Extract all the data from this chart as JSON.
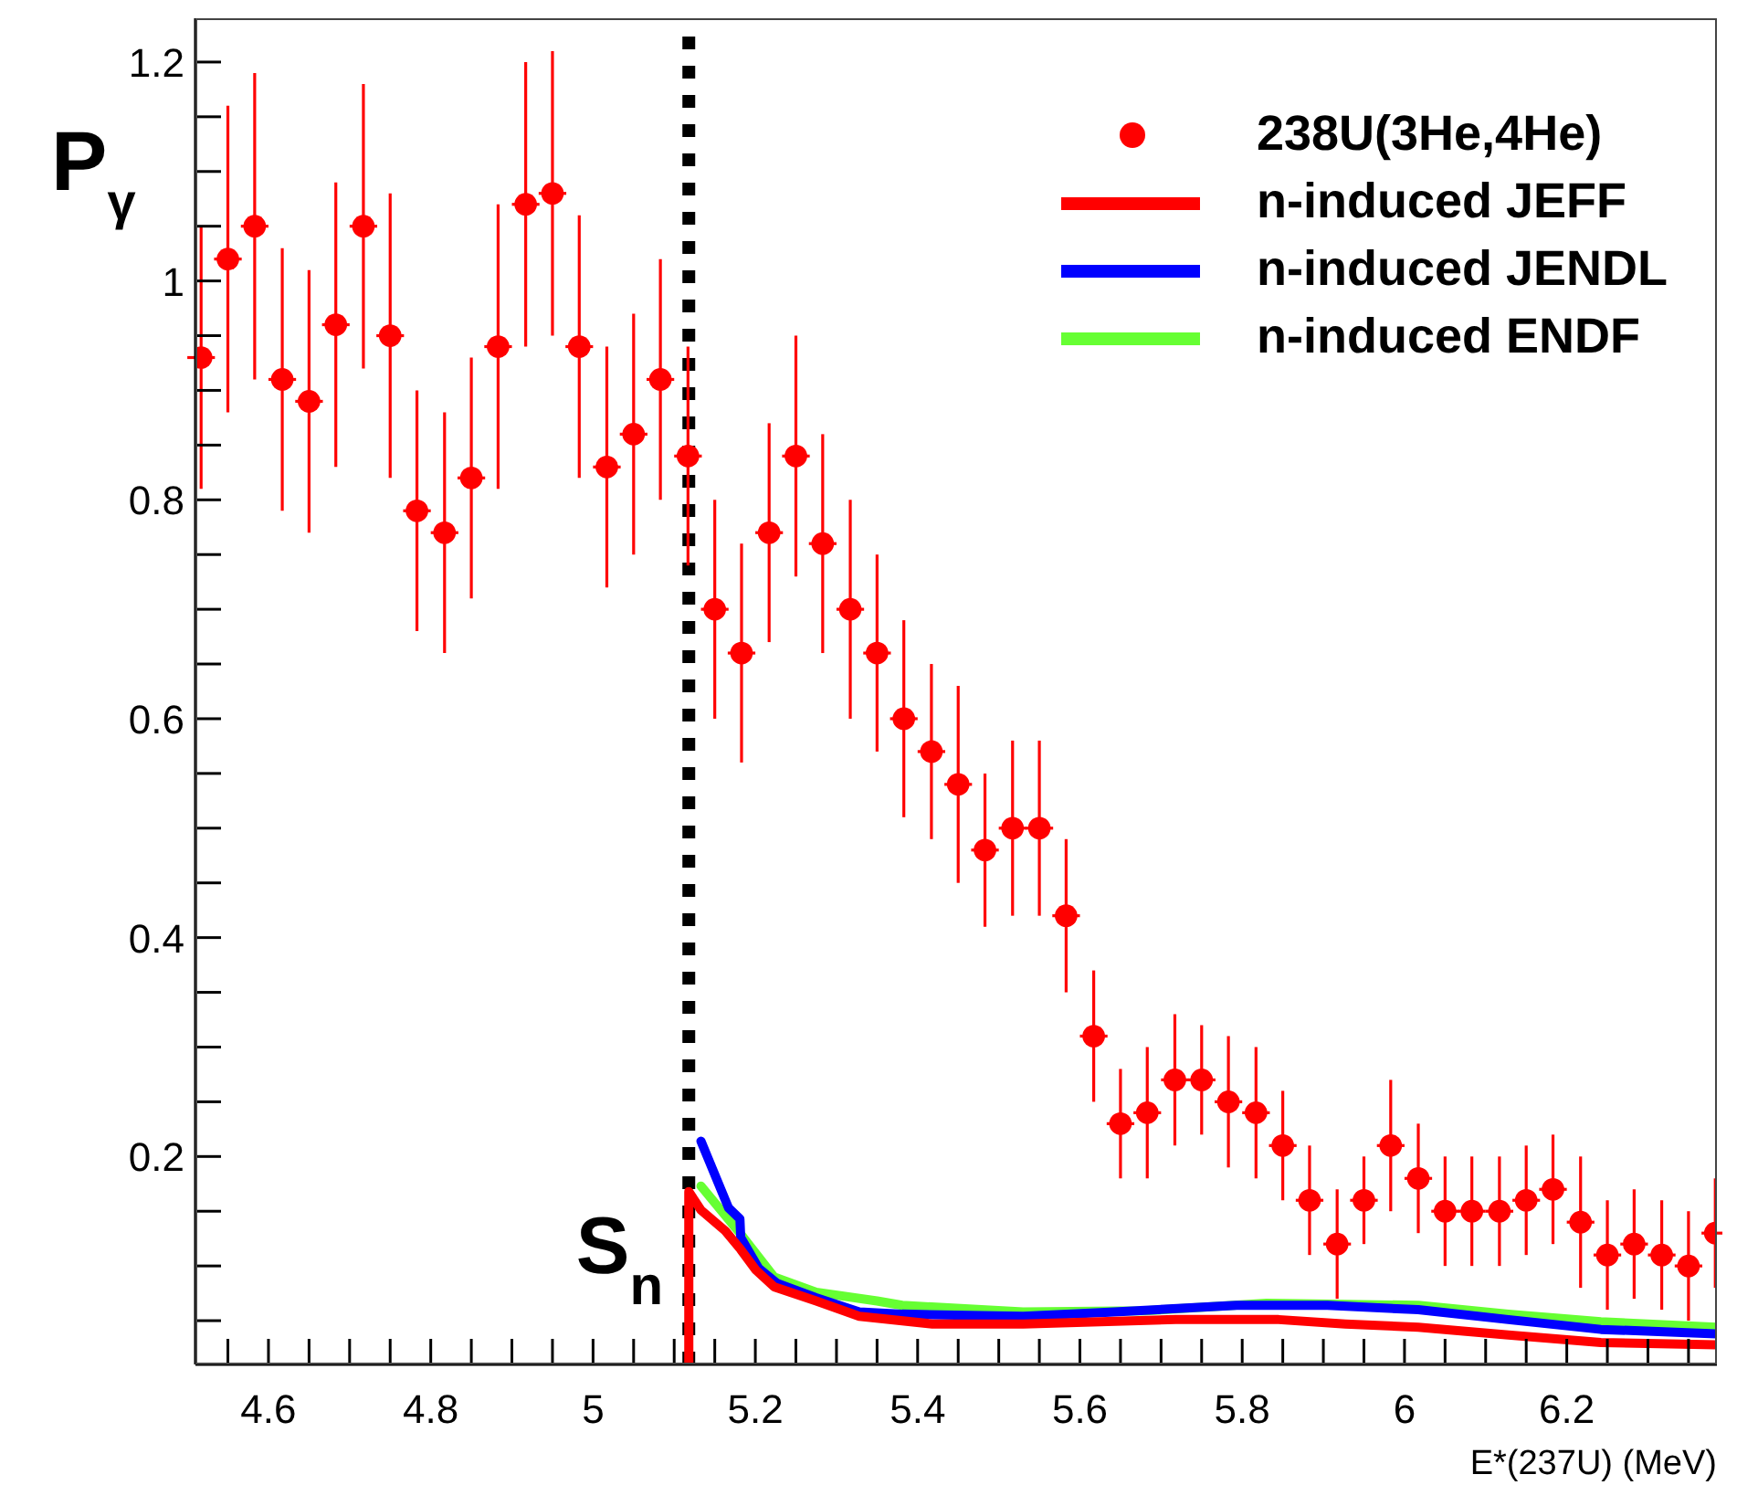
{
  "chart_data": {
    "type": "scatter",
    "xlabel": "E*(237U) (MeV)",
    "ylabel": "P$_{γ}$",
    "xlim": [
      4.51,
      6.385
    ],
    "ylim": [
      0.01,
      1.24
    ],
    "xticks": [
      {
        "value": 4.55,
        "label": null
      },
      4.6,
      {
        "value": 4.65,
        "label": null
      },
      {
        "value": 4.7,
        "label": null
      },
      {
        "value": 4.75,
        "label": null
      },
      4.8,
      {
        "value": 4.85,
        "label": null
      },
      {
        "value": 4.9,
        "label": null
      },
      {
        "value": 4.95,
        "label": null
      },
      5,
      {
        "value": 5.05,
        "label": null
      },
      {
        "value": 5.1,
        "label": null
      },
      {
        "value": 5.15,
        "label": null
      },
      5.2,
      {
        "value": 5.25,
        "label": null
      },
      {
        "value": 5.3,
        "label": null
      },
      {
        "value": 5.35,
        "label": null
      },
      5.4,
      {
        "value": 5.45,
        "label": null
      },
      {
        "value": 5.5,
        "label": null
      },
      {
        "value": 5.55,
        "label": null
      },
      5.6,
      {
        "value": 5.65,
        "label": null
      },
      {
        "value": 5.7,
        "label": null
      },
      {
        "value": 5.75,
        "label": null
      },
      5.8,
      {
        "value": 5.85,
        "label": null
      },
      {
        "value": 5.9,
        "label": null
      },
      {
        "value": 5.95,
        "label": null
      },
      6,
      {
        "value": 6.05,
        "label": null
      },
      {
        "value": 6.1,
        "label": null
      },
      {
        "value": 6.15,
        "label": null
      },
      6.2,
      {
        "value": 6.25,
        "label": null
      },
      {
        "value": 6.3,
        "label": null
      },
      {
        "value": 6.35,
        "label": null
      }
    ],
    "yticks": [
      {
        "value": 0.05,
        "label": null
      },
      {
        "value": 0.1,
        "label": null
      },
      {
        "value": 0.15,
        "label": null
      },
      0.2,
      {
        "value": 0.25,
        "label": null
      },
      {
        "value": 0.3,
        "label": null
      },
      {
        "value": 0.35,
        "label": null
      },
      0.4,
      {
        "value": 0.45,
        "label": null
      },
      {
        "value": 0.5,
        "label": null
      },
      {
        "value": 0.55,
        "label": null
      },
      0.6,
      {
        "value": 0.65,
        "label": null
      },
      {
        "value": 0.7,
        "label": null
      },
      {
        "value": 0.75,
        "label": null
      },
      0.8,
      {
        "value": 0.85,
        "label": null
      },
      {
        "value": 0.9,
        "label": null
      },
      {
        "value": 0.95,
        "label": null
      },
      1,
      {
        "value": 1.05,
        "label": null
      },
      {
        "value": 1.1,
        "label": null
      },
      {
        "value": 1.15,
        "label": null
      },
      1.2
    ],
    "grid": false,
    "legend": "top right",
    "ref_lines": [
      {
        "axis": "x",
        "value": 5.118,
        "label": "S$_{n}$",
        "color": "#000000",
        "line_style": "dotted"
      }
    ],
    "series": [
      {
        "name": "238U(3He,4He)",
        "marker": "circle",
        "color": "#ff0000",
        "x": [
          4.517,
          4.55,
          4.583,
          4.617,
          4.65,
          4.683,
          4.717,
          4.75,
          4.783,
          4.817,
          4.85,
          4.883,
          4.917,
          4.95,
          4.983,
          5.017,
          5.05,
          5.083,
          5.117,
          5.15,
          5.183,
          5.217,
          5.25,
          5.283,
          5.317,
          5.35,
          5.383,
          5.417,
          5.45,
          5.483,
          5.517,
          5.55,
          5.583,
          5.617,
          5.65,
          5.683,
          5.717,
          5.75,
          5.783,
          5.817,
          5.85,
          5.883,
          5.917,
          5.95,
          5.983,
          6.017,
          6.05,
          6.083,
          6.117,
          6.15,
          6.183,
          6.217,
          6.25,
          6.283,
          6.317,
          6.35,
          6.383
        ],
        "values": [
          0.93,
          1.02,
          1.05,
          0.91,
          0.89,
          0.96,
          1.05,
          0.95,
          0.79,
          0.77,
          0.82,
          0.94,
          1.07,
          1.08,
          0.94,
          0.83,
          0.86,
          0.91,
          0.84,
          0.7,
          0.66,
          0.77,
          0.84,
          0.76,
          0.7,
          0.66,
          0.6,
          0.57,
          0.54,
          0.48,
          0.5,
          0.5,
          0.42,
          0.31,
          0.23,
          0.24,
          0.27,
          0.27,
          0.25,
          0.24,
          0.21,
          0.16,
          0.12,
          0.16,
          0.21,
          0.18,
          0.15,
          0.15,
          0.15,
          0.16,
          0.17,
          0.14,
          0.11,
          0.12,
          0.11,
          0.1,
          0.13
        ],
        "errors": [
          0.12,
          0.14,
          0.14,
          0.12,
          0.12,
          0.13,
          0.13,
          0.13,
          0.11,
          0.11,
          0.11,
          0.13,
          0.13,
          0.13,
          0.12,
          0.11,
          0.11,
          0.11,
          0.1,
          0.1,
          0.1,
          0.1,
          0.11,
          0.1,
          0.1,
          0.09,
          0.09,
          0.08,
          0.09,
          0.07,
          0.08,
          0.08,
          0.07,
          0.06,
          0.05,
          0.06,
          0.06,
          0.05,
          0.06,
          0.06,
          0.05,
          0.05,
          0.05,
          0.04,
          0.06,
          0.05,
          0.05,
          0.05,
          0.05,
          0.05,
          0.05,
          0.06,
          0.05,
          0.05,
          0.05,
          0.05,
          0.05
        ],
        "xerrors": [
          0.017,
          0.017,
          0.017,
          0.017,
          0.017,
          0.017,
          0.017,
          0.017,
          0.017,
          0.017,
          0.017,
          0.017,
          0.017,
          0.017,
          0.017,
          0.017,
          0.017,
          0.017,
          0.017,
          0.017,
          0.017,
          0.017,
          0.017,
          0.017,
          0.017,
          0.017,
          0.017,
          0.017,
          0.017,
          0.017,
          0.017,
          0.017,
          0.017,
          0.017,
          0.017,
          0.017,
          0.017,
          0.017,
          0.017,
          0.017,
          0.017,
          0.017,
          0.017,
          0.017,
          0.017,
          0.017,
          0.017,
          0.017,
          0.017,
          0.017,
          0.017,
          0.017,
          0.017,
          0.017,
          0.017,
          0.017,
          0.017
        ]
      },
      {
        "name": "n-induced JEFF",
        "type": "line",
        "color": "#ff0000",
        "x": [
          5.118,
          5.118,
          5.133,
          5.163,
          5.182,
          5.201,
          5.223,
          5.275,
          5.328,
          5.418,
          5.53,
          5.718,
          5.845,
          5.927,
          6.017,
          6.128,
          6.242,
          6.384
        ],
        "values": [
          0.01,
          0.168,
          0.151,
          0.132,
          0.115,
          0.096,
          0.081,
          0.068,
          0.054,
          0.047,
          0.047,
          0.051,
          0.051,
          0.047,
          0.044,
          0.037,
          0.03,
          0.028
        ]
      },
      {
        "name": "n-induced JENDL",
        "type": "line",
        "color": "#0000ff",
        "x": [
          5.133,
          5.167,
          5.181,
          5.182,
          5.204,
          5.227,
          5.275,
          5.328,
          5.381,
          5.53,
          5.643,
          5.793,
          5.905,
          6.017,
          6.128,
          6.242,
          6.384
        ],
        "values": [
          0.214,
          0.153,
          0.143,
          0.126,
          0.098,
          0.084,
          0.071,
          0.058,
          0.056,
          0.054,
          0.058,
          0.064,
          0.064,
          0.06,
          0.051,
          0.042,
          0.038
        ]
      },
      {
        "name": "n-induced ENDF",
        "type": "line",
        "color": "#66ff33",
        "x": [
          5.133,
          5.182,
          5.223,
          5.275,
          5.35,
          5.381,
          5.53,
          5.68,
          5.83,
          6.017,
          6.128,
          6.242,
          6.384
        ],
        "values": [
          0.173,
          0.129,
          0.09,
          0.076,
          0.068,
          0.064,
          0.058,
          0.059,
          0.066,
          0.064,
          0.056,
          0.049,
          0.044
        ]
      }
    ]
  }
}
